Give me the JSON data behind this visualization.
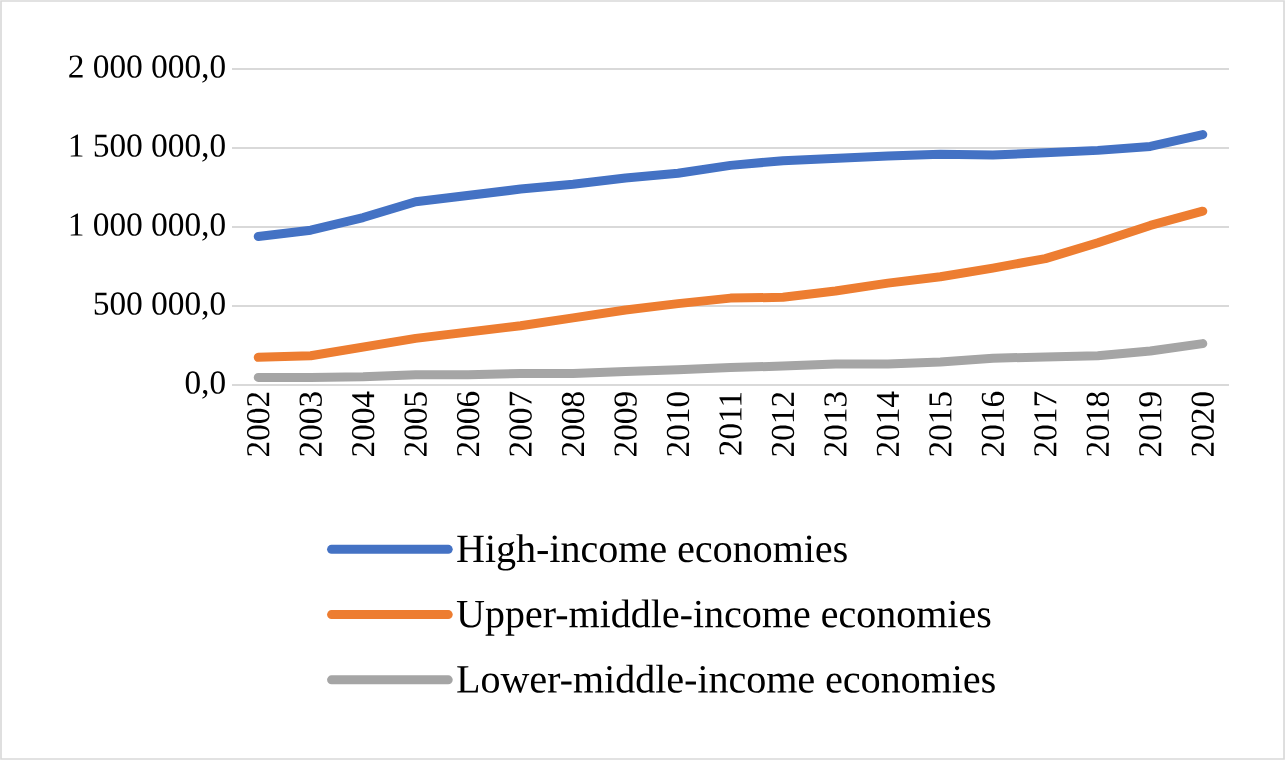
{
  "chart_data": {
    "type": "line",
    "categories": [
      "2002",
      "2003",
      "2004",
      "2005",
      "2006",
      "2007",
      "2008",
      "2009",
      "2010",
      "2011",
      "2012",
      "2013",
      "2014",
      "2015",
      "2016",
      "2017",
      "2018",
      "2019",
      "2020"
    ],
    "series": [
      {
        "name": "High-income economies",
        "color": "#4472c4",
        "values": [
          940000,
          980000,
          1060000,
          1160000,
          1200000,
          1240000,
          1270000,
          1310000,
          1340000,
          1390000,
          1420000,
          1435000,
          1450000,
          1460000,
          1455000,
          1470000,
          1485000,
          1510000,
          1585000
        ]
      },
      {
        "name": "Upper-middle-income economies",
        "color": "#ed7d31",
        "values": [
          175000,
          185000,
          240000,
          295000,
          335000,
          375000,
          425000,
          475000,
          515000,
          550000,
          555000,
          595000,
          645000,
          685000,
          740000,
          800000,
          900000,
          1010000,
          1100000
        ]
      },
      {
        "name": "Lower-middle-income economies",
        "color": "#a5a5a5",
        "values": [
          48000,
          48000,
          52000,
          65000,
          65000,
          73000,
          73000,
          85000,
          97000,
          110000,
          120000,
          133000,
          133000,
          145000,
          170000,
          177000,
          185000,
          215000,
          262000
        ]
      }
    ],
    "ylim": [
      0,
      2000000
    ],
    "yticks": [
      {
        "value": 0,
        "label": "0,0"
      },
      {
        "value": 500000,
        "label": "500 000,0"
      },
      {
        "value": 1000000,
        "label": "1 000 000,0"
      },
      {
        "value": 1500000,
        "label": "1 500 000,0"
      },
      {
        "value": 2000000,
        "label": "2 000 000,0"
      }
    ],
    "grid": "y",
    "legend": "bottom",
    "marker": "none",
    "line_style": "solid"
  }
}
